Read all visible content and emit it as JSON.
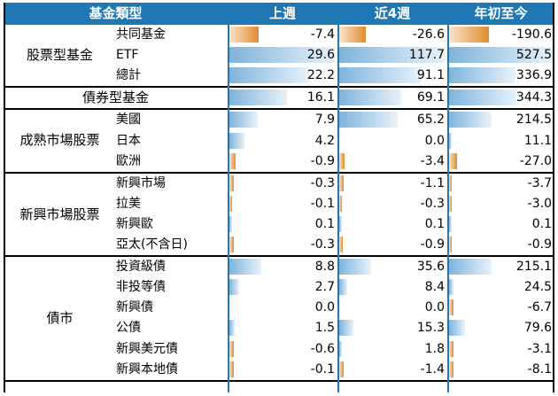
{
  "headers": [
    "基金類型",
    "上週",
    "近4週",
    "年初至今"
  ],
  "colors": {
    "header_bg": "#1f78b4",
    "positive_bar": "#7fb4dc",
    "negative_bar": "#e08b2f"
  },
  "groups": [
    {
      "name": "股票型基金",
      "rows": [
        {
          "label": "共同基金",
          "values": [
            "-7.4",
            "-26.6",
            "-190.6"
          ],
          "nums": [
            -7.4,
            -26.6,
            -190.6
          ]
        },
        {
          "label": "ETF",
          "values": [
            "29.6",
            "117.7",
            "527.5"
          ],
          "nums": [
            29.6,
            117.7,
            527.5
          ]
        },
        {
          "label": "總計",
          "values": [
            "22.2",
            "91.1",
            "336.9"
          ],
          "nums": [
            22.2,
            91.1,
            336.9
          ]
        }
      ]
    },
    {
      "name": "債券型基金",
      "single": true,
      "rows": [
        {
          "label": "",
          "values": [
            "16.1",
            "69.1",
            "344.3"
          ],
          "nums": [
            16.1,
            69.1,
            344.3
          ]
        }
      ]
    },
    {
      "name": "成熟市場股票",
      "rows": [
        {
          "label": "美國",
          "values": [
            "7.9",
            "65.2",
            "214.5"
          ],
          "nums": [
            7.9,
            65.2,
            214.5
          ]
        },
        {
          "label": "日本",
          "values": [
            "4.2",
            "0.0",
            "11.1"
          ],
          "nums": [
            4.2,
            0.0,
            11.1
          ]
        },
        {
          "label": "歐洲",
          "values": [
            "-0.9",
            "-3.4",
            "-27.0"
          ],
          "nums": [
            -0.9,
            -3.4,
            -27.0
          ]
        }
      ]
    },
    {
      "name": "新興市場股票",
      "rows": [
        {
          "label": "新興市場",
          "values": [
            "-0.3",
            "-1.1",
            "-3.7"
          ],
          "nums": [
            -0.3,
            -1.1,
            -3.7
          ]
        },
        {
          "label": "拉美",
          "values": [
            "-0.1",
            "-0.3",
            "-3.0"
          ],
          "nums": [
            -0.1,
            -0.3,
            -3.0
          ]
        },
        {
          "label": "新興歐",
          "values": [
            "0.1",
            "0.1",
            "0.1"
          ],
          "nums": [
            0.1,
            0.1,
            0.1
          ]
        },
        {
          "label": "亞太(不含日)",
          "values": [
            "-0.3",
            "-0.9",
            "-0.9"
          ],
          "nums": [
            -0.3,
            -0.9,
            -0.9
          ]
        }
      ]
    },
    {
      "name": "債市",
      "rows": [
        {
          "label": "投資級債",
          "values": [
            "8.8",
            "35.6",
            "215.1"
          ],
          "nums": [
            8.8,
            35.6,
            215.1
          ]
        },
        {
          "label": "非投等債",
          "values": [
            "2.7",
            "8.4",
            "24.5"
          ],
          "nums": [
            2.7,
            8.4,
            24.5
          ]
        },
        {
          "label": "新興債",
          "values": [
            "0.0",
            "0.0",
            "-6.7"
          ],
          "nums": [
            0.0,
            0.0,
            -6.7
          ]
        },
        {
          "label": "公債",
          "values": [
            "1.5",
            "15.3",
            "79.6"
          ],
          "nums": [
            1.5,
            15.3,
            79.6
          ]
        },
        {
          "label": "新興美元債",
          "values": [
            "-0.6",
            "1.8",
            "-3.1"
          ],
          "nums": [
            -0.6,
            1.8,
            -3.1
          ]
        },
        {
          "label": "新興本地債",
          "values": [
            "-0.1",
            "-1.4",
            "-8.1"
          ],
          "nums": [
            -0.1,
            -1.4,
            -8.1
          ]
        }
      ]
    }
  ]
}
